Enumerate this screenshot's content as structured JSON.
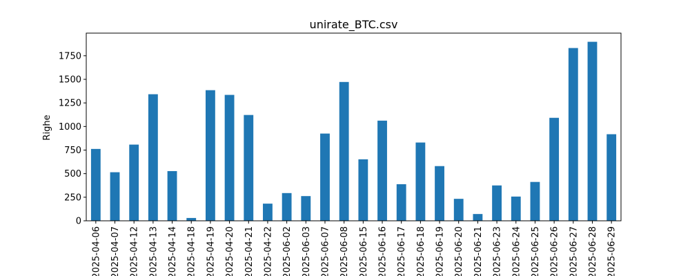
{
  "chart_data": {
    "type": "bar",
    "title": "unirate_BTC.csv",
    "xlabel": "",
    "ylabel": "Righe",
    "ylim": [
      0,
      1990
    ],
    "yticks": [
      0,
      250,
      500,
      750,
      1000,
      1250,
      1500,
      1750
    ],
    "grid": false,
    "bar_color": "#1f77b4",
    "categories": [
      "2025-04-06",
      "2025-04-07",
      "2025-04-12",
      "2025-04-13",
      "2025-04-14",
      "2025-04-18",
      "2025-04-19",
      "2025-04-20",
      "2025-04-21",
      "2025-04-22",
      "2025-06-02",
      "2025-06-03",
      "2025-06-07",
      "2025-06-08",
      "2025-06-15",
      "2025-06-16",
      "2025-06-17",
      "2025-06-18",
      "2025-06-19",
      "2025-06-20",
      "2025-06-21",
      "2025-06-23",
      "2025-06-24",
      "2025-06-25",
      "2025-06-26",
      "2025-06-27",
      "2025-06-28",
      "2025-06-29"
    ],
    "values": [
      762,
      515,
      808,
      1342,
      527,
      30,
      1385,
      1335,
      1122,
      182,
      294,
      262,
      925,
      1472,
      652,
      1062,
      388,
      830,
      580,
      233,
      72,
      375,
      257,
      412,
      1092,
      1832,
      1898,
      918
    ]
  }
}
